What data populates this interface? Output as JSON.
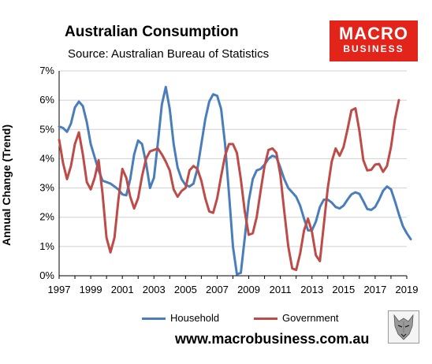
{
  "header": {
    "title": "Australian Consumption",
    "subtitle": "Source: Australian Bureau of Statistics"
  },
  "logo": {
    "line1": "MACRO",
    "line2": "BUSINESS",
    "color": "#e3241b"
  },
  "footer": {
    "url": "www.macrobusiness.com.au"
  },
  "chart_data": {
    "type": "line",
    "title": "Australian Consumption",
    "subtitle": "Source: Australian Bureau of Statistics",
    "xlabel": "",
    "ylabel": "Annual Change (Trend)",
    "xlim": [
      1997,
      2019
    ],
    "ylim": [
      0,
      7
    ],
    "x_ticks": [
      "1997",
      "1999",
      "2001",
      "2003",
      "2005",
      "2007",
      "2009",
      "2011",
      "2013",
      "2015",
      "2017",
      "2019"
    ],
    "y_ticks": [
      "0%",
      "1%",
      "2%",
      "3%",
      "4%",
      "5%",
      "6%",
      "7%"
    ],
    "grid": true,
    "legend": "bottom",
    "series": [
      {
        "name": "Household",
        "color": "#4a7ebb",
        "points": [
          [
            1997.0,
            5.1
          ],
          [
            1997.25,
            5.05
          ],
          [
            1997.5,
            4.92
          ],
          [
            1997.75,
            5.2
          ],
          [
            1998.0,
            5.75
          ],
          [
            1998.25,
            5.95
          ],
          [
            1998.5,
            5.8
          ],
          [
            1998.75,
            5.25
          ],
          [
            1999.0,
            4.5
          ],
          [
            1999.25,
            4.05
          ],
          [
            1999.5,
            3.6
          ],
          [
            1999.75,
            3.25
          ],
          [
            2000.0,
            3.2
          ],
          [
            2000.25,
            3.15
          ],
          [
            2000.5,
            3.05
          ],
          [
            2000.75,
            2.95
          ],
          [
            2001.0,
            2.78
          ],
          [
            2001.25,
            2.75
          ],
          [
            2001.5,
            3.3
          ],
          [
            2001.75,
            4.15
          ],
          [
            2002.0,
            4.62
          ],
          [
            2002.25,
            4.5
          ],
          [
            2002.5,
            3.85
          ],
          [
            2002.75,
            3.0
          ],
          [
            2003.0,
            3.35
          ],
          [
            2003.25,
            4.55
          ],
          [
            2003.5,
            5.85
          ],
          [
            2003.75,
            6.45
          ],
          [
            2004.0,
            5.7
          ],
          [
            2004.25,
            4.5
          ],
          [
            2004.5,
            3.7
          ],
          [
            2004.75,
            3.3
          ],
          [
            2005.0,
            3.1
          ],
          [
            2005.25,
            3.05
          ],
          [
            2005.5,
            3.15
          ],
          [
            2005.75,
            3.65
          ],
          [
            2006.0,
            4.5
          ],
          [
            2006.25,
            5.35
          ],
          [
            2006.5,
            5.95
          ],
          [
            2006.75,
            6.2
          ],
          [
            2007.0,
            6.15
          ],
          [
            2007.25,
            5.7
          ],
          [
            2007.5,
            4.5
          ],
          [
            2007.75,
            2.8
          ],
          [
            2008.0,
            1.0
          ],
          [
            2008.25,
            0.05
          ],
          [
            2008.5,
            0.1
          ],
          [
            2008.75,
            1.3
          ],
          [
            2009.0,
            2.55
          ],
          [
            2009.25,
            3.3
          ],
          [
            2009.5,
            3.6
          ],
          [
            2009.75,
            3.65
          ],
          [
            2010.0,
            3.8
          ],
          [
            2010.25,
            4.0
          ],
          [
            2010.5,
            4.1
          ],
          [
            2010.75,
            4.05
          ],
          [
            2011.0,
            3.7
          ],
          [
            2011.25,
            3.3
          ],
          [
            2011.5,
            3.0
          ],
          [
            2011.75,
            2.85
          ],
          [
            2012.0,
            2.7
          ],
          [
            2012.25,
            2.4
          ],
          [
            2012.5,
            1.95
          ],
          [
            2012.75,
            1.55
          ],
          [
            2013.0,
            1.55
          ],
          [
            2013.25,
            1.85
          ],
          [
            2013.5,
            2.35
          ],
          [
            2013.75,
            2.6
          ],
          [
            2014.0,
            2.6
          ],
          [
            2014.25,
            2.5
          ],
          [
            2014.5,
            2.35
          ],
          [
            2014.75,
            2.3
          ],
          [
            2015.0,
            2.4
          ],
          [
            2015.25,
            2.6
          ],
          [
            2015.5,
            2.78
          ],
          [
            2015.75,
            2.85
          ],
          [
            2016.0,
            2.8
          ],
          [
            2016.25,
            2.55
          ],
          [
            2016.5,
            2.28
          ],
          [
            2016.75,
            2.25
          ],
          [
            2017.0,
            2.35
          ],
          [
            2017.25,
            2.6
          ],
          [
            2017.5,
            2.9
          ],
          [
            2017.75,
            3.05
          ],
          [
            2018.0,
            2.95
          ],
          [
            2018.25,
            2.55
          ],
          [
            2018.5,
            2.1
          ],
          [
            2018.75,
            1.7
          ],
          [
            2019.0,
            1.45
          ],
          [
            2019.25,
            1.25
          ]
        ]
      },
      {
        "name": "Government",
        "color": "#be4b48",
        "points": [
          [
            1997.0,
            4.65
          ],
          [
            1997.25,
            3.85
          ],
          [
            1997.5,
            3.3
          ],
          [
            1997.75,
            3.75
          ],
          [
            1998.0,
            4.5
          ],
          [
            1998.25,
            4.9
          ],
          [
            1998.5,
            4.15
          ],
          [
            1998.75,
            3.2
          ],
          [
            1999.0,
            2.95
          ],
          [
            1999.25,
            3.35
          ],
          [
            1999.5,
            3.95
          ],
          [
            1999.75,
            2.8
          ],
          [
            2000.0,
            1.3
          ],
          [
            2000.25,
            0.8
          ],
          [
            2000.5,
            1.3
          ],
          [
            2000.75,
            2.6
          ],
          [
            2001.0,
            3.65
          ],
          [
            2001.25,
            3.35
          ],
          [
            2001.5,
            2.7
          ],
          [
            2001.75,
            2.3
          ],
          [
            2002.0,
            2.65
          ],
          [
            2002.25,
            3.4
          ],
          [
            2002.5,
            4.0
          ],
          [
            2002.75,
            4.25
          ],
          [
            2003.0,
            4.3
          ],
          [
            2003.25,
            4.35
          ],
          [
            2003.5,
            4.15
          ],
          [
            2003.75,
            3.9
          ],
          [
            2004.0,
            3.6
          ],
          [
            2004.25,
            2.95
          ],
          [
            2004.5,
            2.7
          ],
          [
            2004.75,
            2.9
          ],
          [
            2005.0,
            3.0
          ],
          [
            2005.25,
            3.6
          ],
          [
            2005.5,
            3.75
          ],
          [
            2005.75,
            3.65
          ],
          [
            2006.0,
            3.25
          ],
          [
            2006.25,
            2.65
          ],
          [
            2006.5,
            2.2
          ],
          [
            2006.75,
            2.15
          ],
          [
            2007.0,
            2.65
          ],
          [
            2007.25,
            3.4
          ],
          [
            2007.5,
            4.1
          ],
          [
            2007.75,
            4.5
          ],
          [
            2008.0,
            4.5
          ],
          [
            2008.25,
            4.2
          ],
          [
            2008.5,
            3.3
          ],
          [
            2008.75,
            2.2
          ],
          [
            2009.0,
            1.4
          ],
          [
            2009.25,
            1.45
          ],
          [
            2009.5,
            2.0
          ],
          [
            2009.75,
            2.9
          ],
          [
            2010.0,
            3.75
          ],
          [
            2010.25,
            4.3
          ],
          [
            2010.5,
            4.35
          ],
          [
            2010.75,
            4.2
          ],
          [
            2011.0,
            3.45
          ],
          [
            2011.25,
            2.2
          ],
          [
            2011.5,
            1.0
          ],
          [
            2011.75,
            0.25
          ],
          [
            2012.0,
            0.2
          ],
          [
            2012.25,
            0.75
          ],
          [
            2012.5,
            1.55
          ],
          [
            2012.75,
            1.95
          ],
          [
            2013.0,
            1.5
          ],
          [
            2013.25,
            0.7
          ],
          [
            2013.5,
            0.5
          ],
          [
            2013.75,
            1.75
          ],
          [
            2014.0,
            3.0
          ],
          [
            2014.25,
            3.9
          ],
          [
            2014.5,
            4.35
          ],
          [
            2014.75,
            4.1
          ],
          [
            2015.0,
            4.4
          ],
          [
            2015.25,
            5.0
          ],
          [
            2015.5,
            5.65
          ],
          [
            2015.75,
            5.72
          ],
          [
            2016.0,
            4.95
          ],
          [
            2016.25,
            3.95
          ],
          [
            2016.5,
            3.6
          ],
          [
            2016.75,
            3.62
          ],
          [
            2017.0,
            3.8
          ],
          [
            2017.25,
            3.82
          ],
          [
            2017.5,
            3.55
          ],
          [
            2017.75,
            3.75
          ],
          [
            2018.0,
            4.4
          ],
          [
            2018.25,
            5.35
          ],
          [
            2018.5,
            6.0
          ]
        ]
      }
    ]
  }
}
